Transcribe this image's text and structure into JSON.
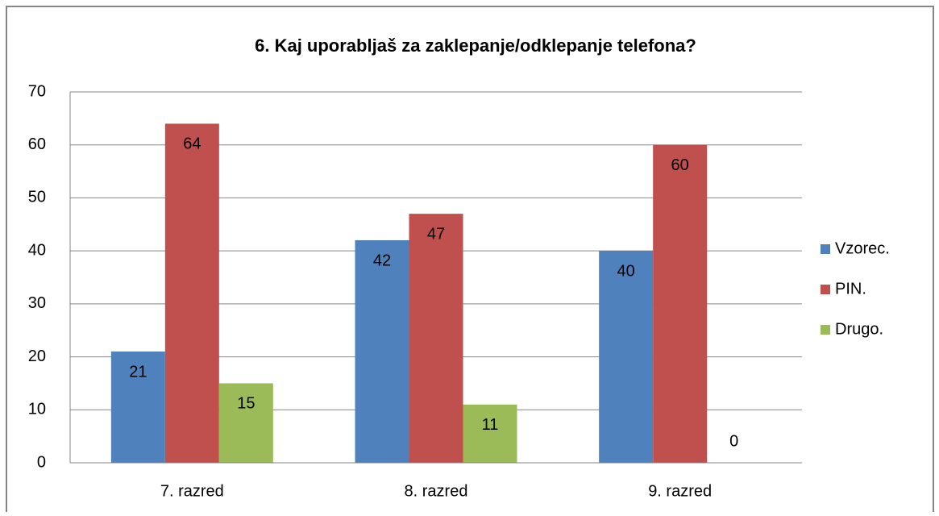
{
  "chart_data": {
    "type": "bar",
    "title": "6. Kaj uporabljaš za zaklepanje/odklepanje telefona?",
    "categories": [
      "7. razred",
      "8. razred",
      "9. razred"
    ],
    "series": [
      {
        "name": "Vzorec.",
        "color": "#4f81bd",
        "values": [
          21,
          42,
          40
        ]
      },
      {
        "name": "PIN.",
        "color": "#c0504d",
        "values": [
          64,
          47,
          60
        ]
      },
      {
        "name": "Drugo.",
        "color": "#9bbb59",
        "values": [
          15,
          11,
          0
        ]
      }
    ],
    "ylim": [
      0,
      70
    ],
    "yticks": [
      0,
      10,
      20,
      30,
      40,
      50,
      60,
      70
    ],
    "grid": true,
    "legend": "right"
  }
}
